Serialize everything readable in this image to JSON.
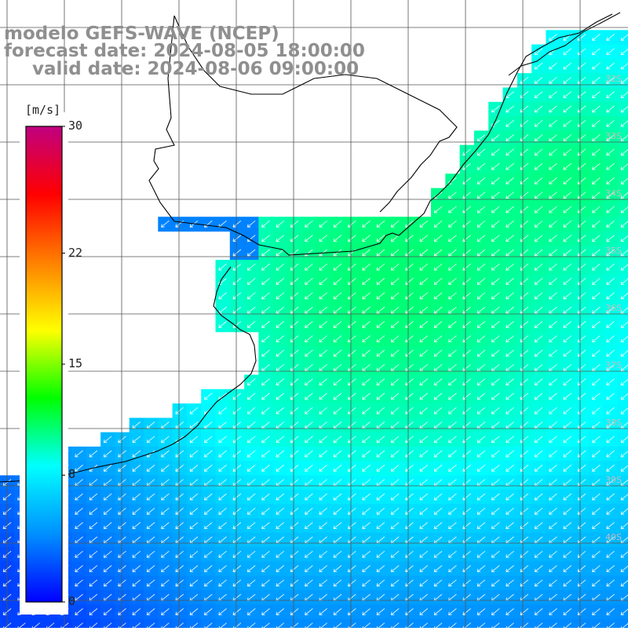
{
  "titles": {
    "model": "modelo GEFS-WAVE (NCEP)",
    "forecast": "forecast date: 2024-08-05 18:00:00",
    "valid": "valid date: 2024-08-06 09:00:00"
  },
  "colorbar": {
    "unit": "[m/s]",
    "min": 0,
    "max": 30,
    "ticks": [
      {
        "label": "30",
        "value": 30
      },
      {
        "label": "22",
        "value": 22
      },
      {
        "label": "15",
        "value": 15
      },
      {
        "label": "8",
        "value": 8
      },
      {
        "label": "0",
        "value": 0
      }
    ],
    "colors": [
      "#0000ff",
      "#0090ff",
      "#00ffff",
      "#00ff00",
      "#ffff00",
      "#ff8000",
      "#ff0000",
      "#c00080"
    ]
  },
  "lat_labels": [
    "32S",
    "33S",
    "34S",
    "35S",
    "36S",
    "37S",
    "38S",
    "39S",
    "40S"
  ],
  "field": {
    "parameter": "wind speed",
    "arrow_direction": "toward south-west",
    "arrow_color": "#ffffff",
    "coast_color": "#000000",
    "grid_color": "#555555"
  }
}
